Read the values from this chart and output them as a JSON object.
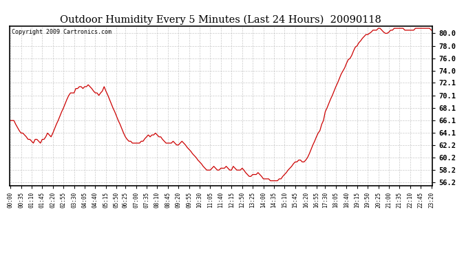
{
  "title": "Outdoor Humidity Every 5 Minutes (Last 24 Hours)  20090118",
  "copyright": "Copyright 2009 Cartronics.com",
  "line_color": "#cc0000",
  "background_color": "#ffffff",
  "grid_color": "#bbbbbb",
  "ylim": [
    55.7,
    81.2
  ],
  "yticks": [
    56.2,
    58.2,
    60.2,
    62.2,
    64.1,
    66.1,
    68.1,
    70.1,
    72.1,
    74.0,
    76.0,
    78.0,
    80.0
  ],
  "x_labels": [
    "00:00",
    "00:35",
    "01:10",
    "01:45",
    "02:20",
    "02:55",
    "03:30",
    "04:05",
    "04:40",
    "05:15",
    "05:50",
    "06:25",
    "07:00",
    "07:35",
    "08:10",
    "08:45",
    "09:20",
    "09:55",
    "10:30",
    "11:05",
    "11:40",
    "12:15",
    "12:50",
    "13:25",
    "14:00",
    "14:35",
    "15:10",
    "15:45",
    "16:20",
    "16:55",
    "17:30",
    "18:05",
    "18:40",
    "19:15",
    "19:50",
    "20:25",
    "21:00",
    "21:35",
    "22:10",
    "22:45",
    "23:20"
  ],
  "humidity_data": [
    66.1,
    66.1,
    66.1,
    65.5,
    65.0,
    64.5,
    64.1,
    64.1,
    63.8,
    63.5,
    63.1,
    63.1,
    62.8,
    62.5,
    63.1,
    63.1,
    62.8,
    62.5,
    63.1,
    63.1,
    63.5,
    64.1,
    63.8,
    63.5,
    64.1,
    64.8,
    65.5,
    66.1,
    66.8,
    67.5,
    68.1,
    68.8,
    69.5,
    70.1,
    70.5,
    70.5,
    70.5,
    71.2,
    71.2,
    71.5,
    71.5,
    71.2,
    71.5,
    71.5,
    71.8,
    71.5,
    71.2,
    70.8,
    70.5,
    70.5,
    70.1,
    70.5,
    70.8,
    71.5,
    70.8,
    70.2,
    69.5,
    68.8,
    68.1,
    67.5,
    66.8,
    66.1,
    65.5,
    64.8,
    64.1,
    63.5,
    63.1,
    62.8,
    62.8,
    62.5,
    62.5,
    62.5,
    62.5,
    62.5,
    62.8,
    62.8,
    63.2,
    63.5,
    63.8,
    63.5,
    63.8,
    63.8,
    64.1,
    63.8,
    63.5,
    63.5,
    63.1,
    62.8,
    62.5,
    62.5,
    62.5,
    62.5,
    62.8,
    62.5,
    62.2,
    62.2,
    62.5,
    62.8,
    62.5,
    62.2,
    61.8,
    61.5,
    61.2,
    60.8,
    60.5,
    60.2,
    59.8,
    59.5,
    59.2,
    58.8,
    58.5,
    58.2,
    58.2,
    58.2,
    58.5,
    58.8,
    58.5,
    58.2,
    58.2,
    58.5,
    58.5,
    58.5,
    58.8,
    58.5,
    58.2,
    58.2,
    58.8,
    58.5,
    58.2,
    58.2,
    58.2,
    58.5,
    58.2,
    57.8,
    57.5,
    57.2,
    57.2,
    57.5,
    57.5,
    57.5,
    57.8,
    57.5,
    57.2,
    56.8,
    56.8,
    56.8,
    56.8,
    56.5,
    56.5,
    56.5,
    56.5,
    56.5,
    56.8,
    56.8,
    57.2,
    57.5,
    57.8,
    58.2,
    58.5,
    58.8,
    59.2,
    59.5,
    59.5,
    59.8,
    59.8,
    59.5,
    59.5,
    59.8,
    60.2,
    60.8,
    61.5,
    62.2,
    62.8,
    63.5,
    64.1,
    64.5,
    65.5,
    66.1,
    67.5,
    68.1,
    68.8,
    69.5,
    70.1,
    70.8,
    71.5,
    72.1,
    72.8,
    73.5,
    74.0,
    74.5,
    75.2,
    75.8,
    76.0,
    76.5,
    77.2,
    77.8,
    78.0,
    78.5,
    78.8,
    79.2,
    79.5,
    79.8,
    79.8,
    80.0,
    80.2,
    80.5,
    80.5,
    80.5,
    80.8,
    80.8,
    80.5,
    80.2,
    80.0,
    80.0,
    80.2,
    80.5,
    80.5,
    80.8,
    80.8,
    80.8,
    80.8,
    80.8,
    80.8,
    80.5,
    80.5,
    80.5,
    80.5,
    80.5,
    80.5,
    80.8,
    80.8,
    80.8,
    80.8,
    80.8,
    80.8,
    80.8,
    80.8,
    80.8,
    80.5
  ]
}
